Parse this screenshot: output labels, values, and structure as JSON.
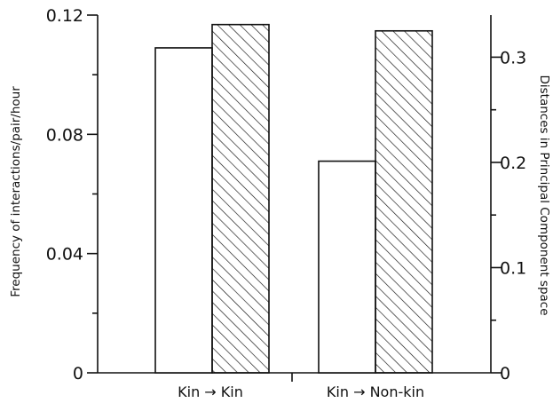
{
  "chart_data": {
    "type": "bar",
    "title": "",
    "categories": [
      "Kin → Kin",
      "Kin → Non-kin"
    ],
    "left_axis": {
      "label": "Frequency of interactions/pair/hour",
      "ylim": [
        0,
        0.12
      ],
      "ticks": [
        0,
        0.04,
        0.08,
        0.12
      ],
      "tick_labels": [
        "0",
        "0.04",
        "0.08",
        "0.12"
      ],
      "minor_ticks": [
        0.02,
        0.06,
        0.1
      ]
    },
    "right_axis": {
      "label": "Distances in Principal Component space",
      "ylim": [
        0,
        0.34
      ],
      "ticks": [
        0,
        0.1,
        0.2,
        0.3
      ],
      "tick_labels": [
        "0",
        "0.1",
        "0.2",
        "0.3"
      ],
      "minor_ticks": [
        0.05,
        0.15,
        0.25
      ]
    },
    "series": [
      {
        "axis": "left",
        "fill": "open",
        "values": [
          0.109,
          0.071
        ]
      },
      {
        "axis": "right",
        "fill": "hatched",
        "values": [
          0.331,
          0.325
        ]
      }
    ],
    "grid": false,
    "legend": "none"
  }
}
